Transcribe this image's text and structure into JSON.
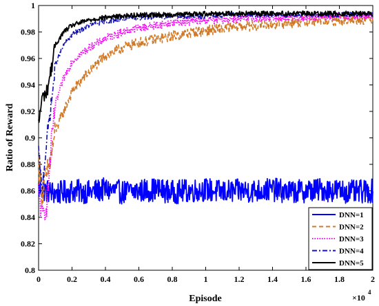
{
  "chart_data": {
    "type": "line",
    "xlabel": "Episode",
    "ylabel": "Ratio of Reward",
    "x_multiplier_text": "×10",
    "x_multiplier_exponent": "4",
    "xlim": [
      0,
      2
    ],
    "ylim": [
      0.8,
      1.0
    ],
    "x_ticks": [
      "0",
      "0.2",
      "0.4",
      "0.6",
      "0.8",
      "1",
      "1.2",
      "1.4",
      "1.6",
      "1.8",
      "2"
    ],
    "y_ticks": [
      "0.8",
      "0.82",
      "0.84",
      "0.86",
      "0.88",
      "0.9",
      "0.92",
      "0.94",
      "0.96",
      "0.98",
      "1"
    ],
    "grid": false,
    "legend_position": "bottom-right",
    "series": [
      {
        "name": "DNN=1",
        "color": "#0000ff",
        "dash": "solid",
        "x": [
          0,
          0.02,
          0.05,
          0.1,
          0.2,
          0.3,
          0.4,
          0.5,
          0.6,
          0.7,
          0.8,
          0.9,
          1.0,
          1.1,
          1.2,
          1.3,
          1.4,
          1.5,
          1.6,
          1.7,
          1.8,
          1.9,
          2.0
        ],
        "y": [
          0.862,
          0.861,
          0.86,
          0.858,
          0.86,
          0.859,
          0.861,
          0.859,
          0.86,
          0.861,
          0.859,
          0.86,
          0.861,
          0.859,
          0.86,
          0.86,
          0.861,
          0.859,
          0.86,
          0.861,
          0.86,
          0.859,
          0.86
        ],
        "noise": 0.009
      },
      {
        "name": "DNN=2",
        "color": "#d07a28",
        "dash": "dashed",
        "x": [
          0,
          0.02,
          0.05,
          0.08,
          0.1,
          0.15,
          0.2,
          0.3,
          0.4,
          0.5,
          0.6,
          0.8,
          1.0,
          1.2,
          1.4,
          1.6,
          1.8,
          2.0
        ],
        "y": [
          0.88,
          0.86,
          0.87,
          0.89,
          0.905,
          0.92,
          0.935,
          0.95,
          0.962,
          0.968,
          0.972,
          0.977,
          0.981,
          0.984,
          0.986,
          0.988,
          0.989,
          0.99
        ],
        "noise": 0.004
      },
      {
        "name": "DNN=3",
        "color": "#ff00ff",
        "dash": "dotted",
        "x": [
          0,
          0.02,
          0.05,
          0.08,
          0.1,
          0.15,
          0.2,
          0.3,
          0.4,
          0.5,
          0.6,
          0.8,
          1.0,
          1.2,
          1.4,
          1.6,
          1.8,
          2.0
        ],
        "y": [
          0.86,
          0.84,
          0.85,
          0.9,
          0.925,
          0.945,
          0.958,
          0.968,
          0.975,
          0.98,
          0.983,
          0.987,
          0.989,
          0.99,
          0.991,
          0.991,
          0.992,
          0.992
        ],
        "noise": 0.003
      },
      {
        "name": "DNN=4",
        "color": "#1010b0",
        "dash": "dashdot",
        "x": [
          0,
          0.02,
          0.05,
          0.08,
          0.1,
          0.15,
          0.2,
          0.3,
          0.4,
          0.5,
          0.6,
          0.8,
          1.0,
          1.2,
          1.4,
          1.6,
          1.8,
          2.0
        ],
        "y": [
          0.89,
          0.86,
          0.9,
          0.93,
          0.955,
          0.97,
          0.978,
          0.985,
          0.988,
          0.99,
          0.991,
          0.992,
          0.992,
          0.993,
          0.993,
          0.993,
          0.993,
          0.993
        ],
        "noise": 0.002
      },
      {
        "name": "DNN=5",
        "color": "#000000",
        "dash": "solid",
        "x": [
          0,
          0.02,
          0.05,
          0.08,
          0.1,
          0.15,
          0.2,
          0.3,
          0.4,
          0.5,
          0.6,
          0.8,
          1.0,
          1.2,
          1.4,
          1.6,
          1.8,
          2.0
        ],
        "y": [
          0.91,
          0.93,
          0.935,
          0.955,
          0.97,
          0.98,
          0.985,
          0.989,
          0.991,
          0.992,
          0.993,
          0.993,
          0.994,
          0.994,
          0.994,
          0.994,
          0.994,
          0.994
        ],
        "noise": 0.0018
      }
    ]
  }
}
